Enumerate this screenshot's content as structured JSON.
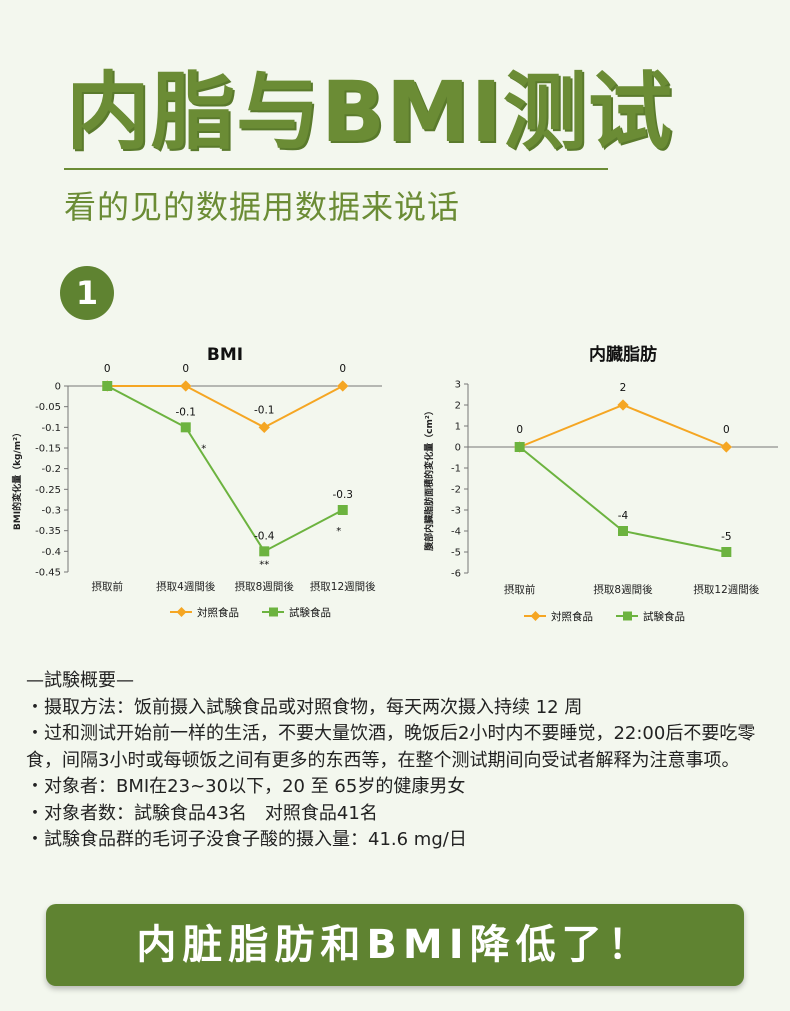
{
  "header": {
    "title": "内脂与BMI测试",
    "subtitle": "看的见的数据用数据来说话",
    "badge": "1"
  },
  "colors": {
    "control": "#f5a623",
    "test": "#6cb33f",
    "brand": "#6b8c35"
  },
  "chart_data": [
    {
      "type": "line",
      "title": "BMI",
      "ylabel": "BMI的変化量（kg/m²）",
      "categories": [
        "摂取前",
        "摂取4週間後",
        "摂取8週間後",
        "摂取12週間後"
      ],
      "ylim": [
        -0.45,
        0
      ],
      "yticks": [
        "0",
        "-0.05",
        "-0.1",
        "-0.15",
        "-0.2",
        "-0.25",
        "-0.3",
        "-0.35",
        "-0.4",
        "-0.45"
      ],
      "legend": "bottom",
      "series": [
        {
          "name": "対照食品",
          "values": [
            0,
            0,
            -0.1,
            0
          ],
          "labels": [
            "0",
            "0",
            "-0.1",
            "0"
          ]
        },
        {
          "name": "試験食品",
          "values": [
            0,
            -0.1,
            -0.4,
            -0.3
          ],
          "labels": [
            "",
            "-0.1",
            "-0.4",
            "-0.3"
          ],
          "marks": [
            "",
            "*",
            "**",
            "*"
          ]
        }
      ]
    },
    {
      "type": "line",
      "title": "内臓脂肪",
      "ylabel": "腹部内臓脂肪面積的変化量（cm²）",
      "categories": [
        "摂取前",
        "摂取8週間後",
        "摂取12週間後"
      ],
      "ylim": [
        -6,
        3
      ],
      "yticks": [
        "3",
        "2",
        "1",
        "0",
        "-1",
        "-2",
        "-3",
        "-4",
        "-5",
        "-6"
      ],
      "legend": "bottom",
      "series": [
        {
          "name": "対照食品",
          "values": [
            0,
            2,
            0
          ],
          "labels": [
            "0",
            "2",
            "0"
          ]
        },
        {
          "name": "試験食品",
          "values": [
            0,
            -4,
            -5
          ],
          "labels": [
            "",
            "-4",
            "-5"
          ]
        }
      ]
    }
  ],
  "notes": {
    "heading": "—試験概要—",
    "items": [
      "・摄取方法：饭前摄入試験食品或对照食物，每天两次摄入持续 12 周",
      "・过和测试开始前一样的生活，不要大量饮酒，晚饭后2小时内不要睡觉，22:00后不要吃零食，间隔3小时或每顿饭之间有更多的东西等，在整个测试期间向受试者解释为注意事项。",
      "・对象者：BMI在23~30以下，20 至 65岁的健康男女",
      "・对象者数：試験食品43名　对照食品41名",
      "・試験食品群的毛诃子没食子酸的摄入量：41.6 mg/日"
    ]
  },
  "banner": {
    "text": "内脏脂肪和BMI降低了！"
  }
}
